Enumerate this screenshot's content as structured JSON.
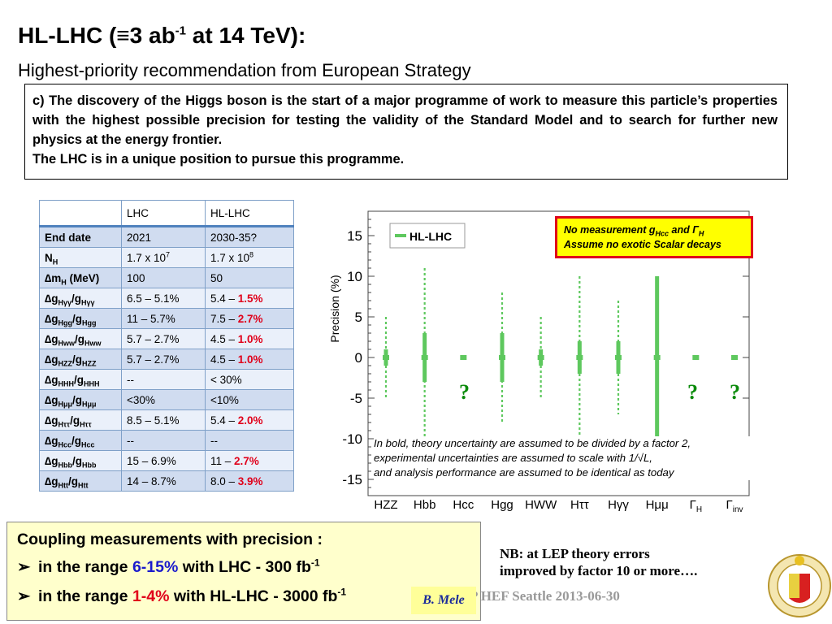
{
  "title": {
    "prefix": "HL-LHC  (",
    "symbol": "≡",
    "main": "3 ab",
    "sup": "-1",
    "suffix": " at 14 TeV):"
  },
  "subtitle": "Highest-priority recommendation from European Strategy",
  "strategy": {
    "text": "c) The discovery of the Higgs boson is the start of a major programme of work to measure this particle’s properties with the highest possible precision for testing the validity of the Standard Model and to search for further new physics at the energy frontier.",
    "text2": "The LHC is in a unique position to pursue this programme."
  },
  "table": {
    "headers": [
      "",
      "LHC",
      "HL-LHC"
    ],
    "rows": [
      {
        "label": "End date",
        "lhc": "2021",
        "hl_plain": "2030-35?",
        "hl_red": ""
      },
      {
        "label": "N",
        "label_sub": "H",
        "lhc": "1.7 x 10",
        "lhc_sup": "7",
        "hl_plain": "1.7 x 10",
        "hl_sup": "8",
        "hl_red": ""
      },
      {
        "label": "∆m",
        "label_sub": "H",
        "label_suffix": " (MeV)",
        "lhc": "100",
        "hl_plain": "50",
        "hl_red": ""
      },
      {
        "label": "∆g",
        "label_sub": "Hγγ",
        "label_mid": "/g",
        "label_sub2": "Hγγ",
        "lhc": "6.5 –  5.1%",
        "hl_plain": "5.4 – ",
        "hl_red": "1.5%"
      },
      {
        "label": "∆g",
        "label_sub": "Hgg",
        "label_mid": "/g",
        "label_sub2": "Hgg",
        "lhc": "11 –  5.7%",
        "hl_plain": "7.5 –  ",
        "hl_red": "2.7%"
      },
      {
        "label": "∆g",
        "label_sub": "Hww",
        "label_mid": "/g",
        "label_sub2": "Hww",
        "lhc": "5.7 – 2.7%",
        "hl_plain": "4.5 – ",
        "hl_red": "1.0%"
      },
      {
        "label": "∆g",
        "label_sub": "HZZ",
        "label_mid": "/g",
        "label_sub2": "HZZ",
        "lhc": "5.7 – 2.7%",
        "hl_plain": "4.5 – ",
        "hl_red": "1.0%"
      },
      {
        "label": "∆g",
        "label_sub": "HHH",
        "label_mid": "/g",
        "label_sub2": "HHH",
        "lhc": "--",
        "hl_plain": "< 30%",
        "hl_red": ""
      },
      {
        "label": "∆g",
        "label_sub": "Hμμ",
        "label_mid": "/g",
        "label_sub2": "Hμμ",
        "lhc": "<30%",
        "hl_plain": "<10%",
        "hl_red": ""
      },
      {
        "label": "∆g",
        "label_sub": "Hττ",
        "label_mid": "/g",
        "label_sub2": "Hττ",
        "lhc": "8.5 – 5.1%",
        "hl_plain": "5.4 – ",
        "hl_red": "2.0%"
      },
      {
        "label": "∆g",
        "label_sub": "Hcc",
        "label_mid": "/g",
        "label_sub2": "Hcc",
        "lhc": "--",
        "hl_plain": "--",
        "hl_red": ""
      },
      {
        "label": "∆g",
        "label_sub": "Hbb",
        "label_mid": "/g",
        "label_sub2": "Hbb",
        "lhc": "15 – 6.9%",
        "hl_plain": "11 – ",
        "hl_red": "2.7%"
      },
      {
        "label": "∆g",
        "label_sub": "Htt",
        "label_mid": "/g",
        "label_sub2": "Htt",
        "lhc": "14 – 8.7%",
        "hl_plain": "8.0 – ",
        "hl_red": "3.9%"
      }
    ]
  },
  "chart_data": {
    "type": "error_bar",
    "ylabel": "Precision (%)",
    "ylim": [
      -17,
      18
    ],
    "yticks": [
      15,
      10,
      5,
      0,
      -5,
      -10,
      -15
    ],
    "legend": "HL-LHC",
    "legend_position": "top-left",
    "categories": [
      "HZZ",
      "Hbb",
      "Hcc",
      "Hgg",
      "HWW",
      "Hττ",
      "Hγγ",
      "Hμμ",
      "ΓH",
      "Γinv"
    ],
    "category_sub": [
      "",
      "",
      "",
      "",
      "",
      "",
      "",
      "",
      "H",
      "inv"
    ],
    "series": [
      {
        "name": "HL-LHC",
        "center": [
          0,
          0,
          0,
          0,
          0,
          0,
          0,
          0,
          0,
          0
        ],
        "outer": [
          5,
          11,
          0,
          8,
          5,
          10,
          7,
          5,
          0,
          0
        ],
        "inner": [
          1,
          3,
          0.3,
          3,
          1,
          2,
          2,
          10,
          0.3,
          0.3
        ]
      }
    ],
    "color": "#5ec85e"
  },
  "chart_note": {
    "line1": "In bold, theory uncertainty are assumed to be divided by a factor 2,",
    "line2": "experimental uncertainties are assumed to scale with 1/√L,",
    "line3": "and analysis performance are assumed to be identical as today"
  },
  "red_box": {
    "line1_a": "No measurement g",
    "line1_sub": "Hcc",
    "line1_b": " and ",
    "line1_g": "Γ",
    "line1_gsub": "H",
    "line2": "Assume no exotic Scalar decays"
  },
  "question_marks": [
    "?",
    "?",
    "?"
  ],
  "summary": {
    "heading": "Coupling measurements with precision :",
    "items": [
      {
        "arrow": "➢",
        "pre": "in the range ",
        "range": "6-15%",
        "mid": " with LHC - 300 fb",
        "sup": "-1"
      },
      {
        "arrow": "➢",
        "pre": "in the range ",
        "range": "1-4%",
        "mid": " with HL-LHC - 3000 fb",
        "sup": "-1"
      }
    ]
  },
  "nb": {
    "line1": "NB: at LEP theory errors",
    "line2": "improved  by factor 10 or more…."
  },
  "conference": "P HEF Seattle 2013-06-30",
  "author": "B. Mele",
  "colors": {
    "accent_red": "#e0001a",
    "accent_blue": "#1a1acc",
    "series_green": "#5ec85e",
    "table_dark": "#d0dcf0",
    "table_light": "#eaf0fa"
  }
}
